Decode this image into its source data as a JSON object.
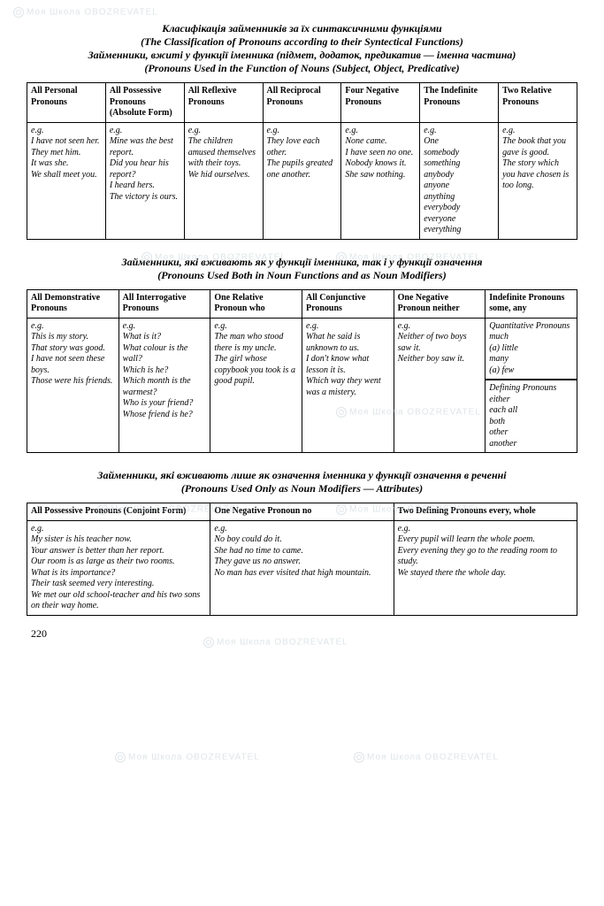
{
  "watermark_label": "Моя Школа",
  "watermark_sub": "OBOZREVATEL",
  "page_number": "220",
  "section1": {
    "title_uk": "Класифікація займенників за їх синтаксичними функціями",
    "title_en": "(The Classification of Pronouns according to their Syntectical Functions)",
    "subtitle_uk": "Займенники, вжиті у функції іменника (підмет, додаток, предикатив — іменна частина)",
    "subtitle_en": "(Pronouns Used in the Function of Nouns (Subject, Object, Predicative)",
    "headers": [
      "All Personal Pronouns",
      "All Possessive Pronouns (Absolute Form)",
      "All Reflexive Pronouns",
      "All Reciprocal Pronouns",
      "Four Negative Pronouns",
      "The Indefinite Pronouns",
      "Two Relative Pronouns"
    ],
    "cells": [
      "e.g.\nI have not seen her.\nThey met him.\nIt was she.\nWe shall meet you.",
      "e.g.\nMine was the best report.\nDid you hear his report?\nI heard hers.\nThe victory is ours.",
      "e.g.\nThe children amused themselves with their toys.\nWe hid ourselves.",
      "e.g.\nThey love each other.\nThe pupils greated one another.",
      "e.g.\nNone came.\nI have seen no one.\nNobody knows it.\nShe saw nothing.",
      "e.g.\nOne\nsomebody\nsomething\nanybody\nanyone\nanything\neverybody\neveryone\neverything",
      "e.g.\nThe book that you gave is good.\nThe story which you have chosen is too long."
    ]
  },
  "section2": {
    "title_uk": "Займенники, які вживають як у функції іменника, так і у функції означення",
    "title_en": "(Pronouns Used Both in Noun Functions and as Noun Modifiers)",
    "headers": [
      "All Demonstrative Pronouns",
      "All Interrogative Pronouns",
      "One Relative Pronoun who",
      "All Conjunctive Pronouns",
      "One Negative Pronoun neither",
      "Indefinite Pronouns some, any"
    ],
    "cells": [
      "e.g.\nThis is my story.\nThat story was good.\nI have not seen these boys.\nThose were his friends.",
      "e.g.\nWhat is it?\nWhat colour is the wall?\nWhich is he?\nWhich month is the warmest?\nWho is your friend?\nWhose friend is he?",
      "e.g.\nThe man who stood there is my uncle.\nThe girl whose copybook you took is a good pupil.",
      "e.g.\nWhat he said is unknown to us.\nI don't know what lesson it is.\nWhich way they went was a mistery.",
      "e.g.\nNeither of two boys saw it.\nNeither boy saw it."
    ],
    "col6_top": "Quantitative Pronouns much\n(a) little\nmany\n(a) few",
    "col6_bot": "Defining Pronouns\neither\neach all\nboth\nother\nanother"
  },
  "section3": {
    "title_uk": "Займенники, які вживають лише як означення іменника у функції означення в реченні",
    "title_en": "(Pronouns Used Only as Noun Modifiers — Attributes)",
    "headers": [
      "All Possessive Pronouns (Conjoint Form)",
      "One Negative Pronoun no",
      "Two Defining Pronouns every, whole"
    ],
    "cells": [
      "e.g.\nMy sister is his teacher now.\nYour answer is better than her report.\nOur room is as large as their two rooms.\nWhat is its importance?\nTheir task seemed very interesting.\nWe met our old school-teacher and his two sons on their way home.",
      "e.g.\nNo boy could do it.\nShe had no time to came.\nThey gave us no answer.\nNo man has ever visited that high mountain.",
      "e.g.\nEvery pupil will learn the whole poem.\nEvery evening they go to the reading room to study.\nWe stayed there the whole day."
    ]
  }
}
